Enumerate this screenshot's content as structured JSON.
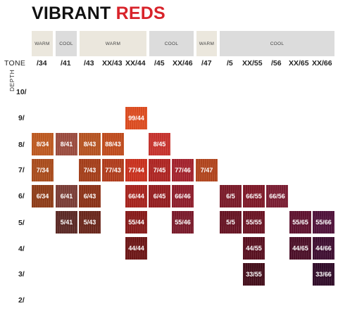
{
  "title": {
    "part1": "VIBRANT",
    "part2": "REDS"
  },
  "tone_label": "TONE",
  "depth_label": "DEPTH",
  "groups": [
    {
      "label": "WARM",
      "kind": "warm"
    },
    {
      "label": "COOL",
      "kind": "cool"
    },
    {
      "label": "WARM",
      "kind": "warm"
    },
    {
      "label": "COOL",
      "kind": "cool"
    },
    {
      "label": "WARM",
      "kind": "warm"
    },
    {
      "label": "COOL",
      "kind": "cool"
    }
  ],
  "tones": [
    "/34",
    "/41",
    "/43",
    "XX/43",
    "XX/44",
    "/45",
    "XX/46",
    "/47",
    "/5",
    "XX/55",
    "/56",
    "XX/65",
    "XX/66"
  ],
  "depths": [
    "10/",
    "9/",
    "8/",
    "7/",
    "6/",
    "5/",
    "4/",
    "3/",
    "2/"
  ],
  "swatches": [
    {
      "label": "99/44",
      "color": "#e04a1c"
    },
    {
      "label": "8/34",
      "color": "#c0581d"
    },
    {
      "label": "8/41",
      "color": "#9c4a3c"
    },
    {
      "label": "8/43",
      "color": "#b8521e"
    },
    {
      "label": "88/43",
      "color": "#c24a1a"
    },
    {
      "label": "8/45",
      "color": "#c9302a"
    },
    {
      "label": "7/34",
      "color": "#ab4a18"
    },
    {
      "label": "7/43",
      "color": "#a63c16"
    },
    {
      "label": "77/43",
      "color": "#b23a18"
    },
    {
      "label": "77/44",
      "color": "#cc2e1a"
    },
    {
      "label": "7/45",
      "color": "#b0221f"
    },
    {
      "label": "77/46",
      "color": "#a51f2a"
    },
    {
      "label": "7/47",
      "color": "#b3431a"
    },
    {
      "label": "6/34",
      "color": "#8f3a14"
    },
    {
      "label": "6/41",
      "color": "#7a3a33"
    },
    {
      "label": "6/43",
      "color": "#8c2f13"
    },
    {
      "label": "66/44",
      "color": "#a8201a"
    },
    {
      "label": "6/45",
      "color": "#951a1c"
    },
    {
      "label": "66/46",
      "color": "#8f1a28"
    },
    {
      "label": "6/5",
      "color": "#7a1625"
    },
    {
      "label": "66/55",
      "color": "#7e1424"
    },
    {
      "label": "66/56",
      "color": "#7a1a30"
    },
    {
      "label": "5/41",
      "color": "#5a2622"
    },
    {
      "label": "5/43",
      "color": "#6a2418"
    },
    {
      "label": "55/44",
      "color": "#881716"
    },
    {
      "label": "55/46",
      "color": "#7a1728"
    },
    {
      "label": "5/5",
      "color": "#661020"
    },
    {
      "label": "55/55",
      "color": "#6a1020"
    },
    {
      "label": "55/65",
      "color": "#5e0f2c"
    },
    {
      "label": "55/66",
      "color": "#4e0f38"
    },
    {
      "label": "44/44",
      "color": "#6c1212"
    },
    {
      "label": "44/55",
      "color": "#570c1c"
    },
    {
      "label": "44/65",
      "color": "#4a0b25"
    },
    {
      "label": "44/66",
      "color": "#3c0a2e"
    },
    {
      "label": "33/55",
      "color": "#420a17"
    },
    {
      "label": "33/66",
      "color": "#2e0826"
    }
  ]
}
